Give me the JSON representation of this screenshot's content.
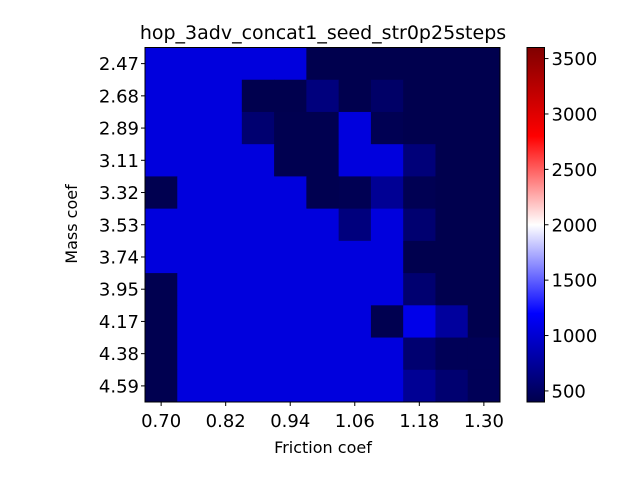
{
  "chart_data": {
    "type": "heatmap",
    "title": "hop_3adv_concat1_seed_str0p25steps",
    "xlabel": "Friction coef",
    "ylabel": "Mass coef",
    "x_tick_labels": [
      "0.70",
      "0.82",
      "0.94",
      "1.06",
      "1.18",
      "1.30"
    ],
    "y_tick_labels": [
      "2.47",
      "2.68",
      "2.89",
      "3.11",
      "3.32",
      "3.53",
      "3.74",
      "3.95",
      "4.17",
      "4.38",
      "4.59"
    ],
    "colorbar": {
      "colormap": "seismic",
      "vmin": 400,
      "vmax": 3600,
      "tick_labels": [
        "500",
        "1000",
        "1500",
        "2000",
        "2500",
        "3000",
        "3500"
      ],
      "tick_values": [
        500,
        1000,
        1500,
        2000,
        2500,
        3000,
        3500
      ]
    },
    "grid": false,
    "n_cols": 11,
    "values": [
      [
        1050,
        1050,
        1050,
        1050,
        1050,
        410,
        410,
        410,
        410,
        410,
        410
      ],
      [
        1050,
        1050,
        1050,
        410,
        410,
        620,
        410,
        520,
        410,
        410,
        410
      ],
      [
        1050,
        1050,
        1050,
        560,
        420,
        420,
        1050,
        430,
        410,
        410,
        410
      ],
      [
        1050,
        1050,
        1050,
        1050,
        420,
        420,
        1050,
        1050,
        600,
        410,
        410
      ],
      [
        420,
        1050,
        1050,
        1050,
        1050,
        420,
        430,
        720,
        430,
        410,
        410
      ],
      [
        1050,
        1050,
        1050,
        1050,
        1050,
        1050,
        620,
        1050,
        560,
        410,
        410
      ],
      [
        1050,
        1050,
        1050,
        1050,
        1050,
        1050,
        1050,
        1050,
        410,
        410,
        410
      ],
      [
        420,
        1050,
        1050,
        1050,
        1050,
        1050,
        1050,
        1050,
        560,
        410,
        410
      ],
      [
        420,
        1050,
        1050,
        1050,
        1050,
        1050,
        1050,
        420,
        1100,
        760,
        410
      ],
      [
        420,
        1050,
        1050,
        1050,
        1050,
        1050,
        1050,
        1050,
        560,
        450,
        450
      ],
      [
        420,
        1050,
        1050,
        1050,
        1050,
        1050,
        1050,
        1050,
        720,
        560,
        450
      ]
    ]
  }
}
